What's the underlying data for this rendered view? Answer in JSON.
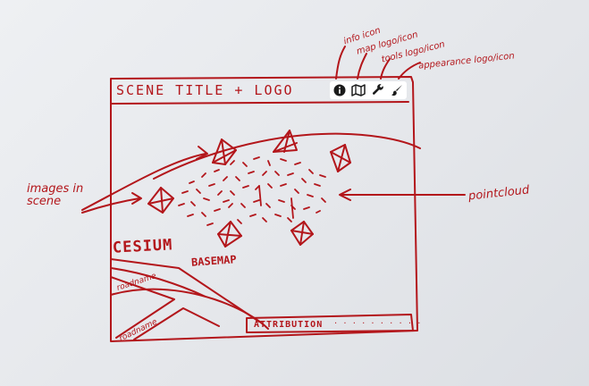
{
  "header": {
    "title": "SCENE TITLE + LOGO"
  },
  "toolbar": {
    "icons": [
      {
        "name": "info-icon"
      },
      {
        "name": "map-icon"
      },
      {
        "name": "wrench-icon"
      },
      {
        "name": "brush-icon"
      }
    ]
  },
  "annotations": {
    "info": "info icon",
    "map": "map logo/icon",
    "tools": "tools logo/icon",
    "appearance": "appearance logo/icon",
    "images": "images in scene",
    "pointcloud": "pointcloud"
  },
  "map": {
    "basemap_line1": "CESIUM",
    "basemap_line2": "BASEMAP",
    "road1": "roadname",
    "road2": "roadname",
    "attribution": "ATTRIBUTION"
  },
  "colors": {
    "ink": "#b3161b",
    "paper": "#e9ebee",
    "toolbar": "#ffffff"
  }
}
